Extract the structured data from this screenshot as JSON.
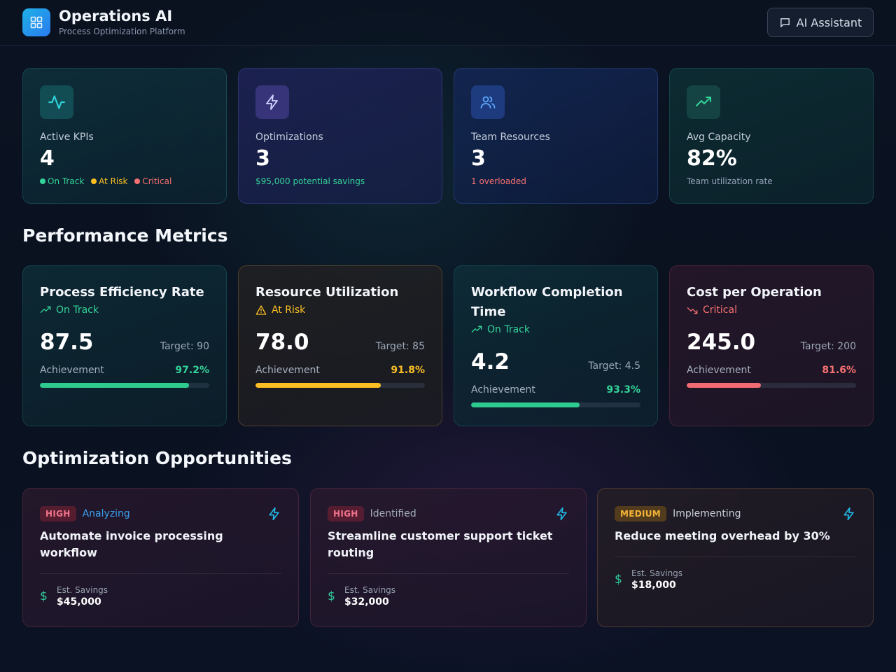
{
  "header": {
    "title": "Operations AI",
    "subtitle": "Process Optimization Platform",
    "assistant_label": "AI Assistant"
  },
  "stats": [
    {
      "label": "Active KPIs",
      "value": "4",
      "icon": "activity-icon",
      "legend": [
        {
          "text": "On Track",
          "color": "#34d399"
        },
        {
          "text": "At Risk",
          "color": "#fbbf24"
        },
        {
          "text": "Critical",
          "color": "#f87171"
        }
      ]
    },
    {
      "label": "Optimizations",
      "value": "3",
      "icon": "lightning-icon",
      "note": "$95,000 potential savings",
      "note_color": "#34d399"
    },
    {
      "label": "Team Resources",
      "value": "3",
      "icon": "users-icon",
      "note": "1 overloaded",
      "note_color": "#f87171"
    },
    {
      "label": "Avg Capacity",
      "value": "82%",
      "icon": "trending-up-icon",
      "note": "Team utilization rate",
      "note_color": "#94a3b8"
    }
  ],
  "sections": {
    "performance": "Performance Metrics",
    "opportunities": "Optimization Opportunities"
  },
  "metrics": [
    {
      "name": "Process Efficiency Rate",
      "status": "On Track",
      "status_icon": "trending-up-icon",
      "color": "#34d399",
      "value": "87.5",
      "target": "Target: 90",
      "achievement_label": "Achievement",
      "achievement": "97.2%",
      "fill": 0.88
    },
    {
      "name": "Resource Utilization",
      "status": "At Risk",
      "status_icon": "warning-icon",
      "color": "#fbbf24",
      "value": "78.0",
      "target": "Target: 85",
      "achievement_label": "Achievement",
      "achievement": "91.8%",
      "fill": 0.74
    },
    {
      "name": "Workflow Completion Time",
      "status": "On Track",
      "status_icon": "trending-up-icon",
      "color": "#34d399",
      "value": "4.2",
      "target": "Target: 4.5",
      "achievement_label": "Achievement",
      "achievement": "93.3%",
      "fill": 0.64
    },
    {
      "name": "Cost per Operation",
      "status": "Critical",
      "status_icon": "trending-down-icon",
      "color": "#f87171",
      "value": "245.0",
      "target": "Target: 200",
      "achievement_label": "Achievement",
      "achievement": "81.6%",
      "fill": 0.44
    }
  ],
  "opportunities": [
    {
      "priority": "HIGH",
      "status": "Analyzing",
      "status_color": "#3b9ff0",
      "title": "Automate invoice processing workflow",
      "savings_label": "Est. Savings",
      "savings": "$45,000"
    },
    {
      "priority": "HIGH",
      "status": "Identified",
      "status_color": "#a3adbb",
      "title": "Streamline customer support ticket routing",
      "savings_label": "Est. Savings",
      "savings": "$32,000"
    },
    {
      "priority": "MEDIUM",
      "status": "Implementing",
      "status_color": "#c7cfda",
      "title": "Reduce meeting overhead by 30%",
      "savings_label": "Est. Savings",
      "savings": "$18,000"
    }
  ],
  "colors": {
    "accent": "#1fb0e6",
    "success": "#34d399",
    "warning": "#fbbf24",
    "danger": "#f87171"
  }
}
